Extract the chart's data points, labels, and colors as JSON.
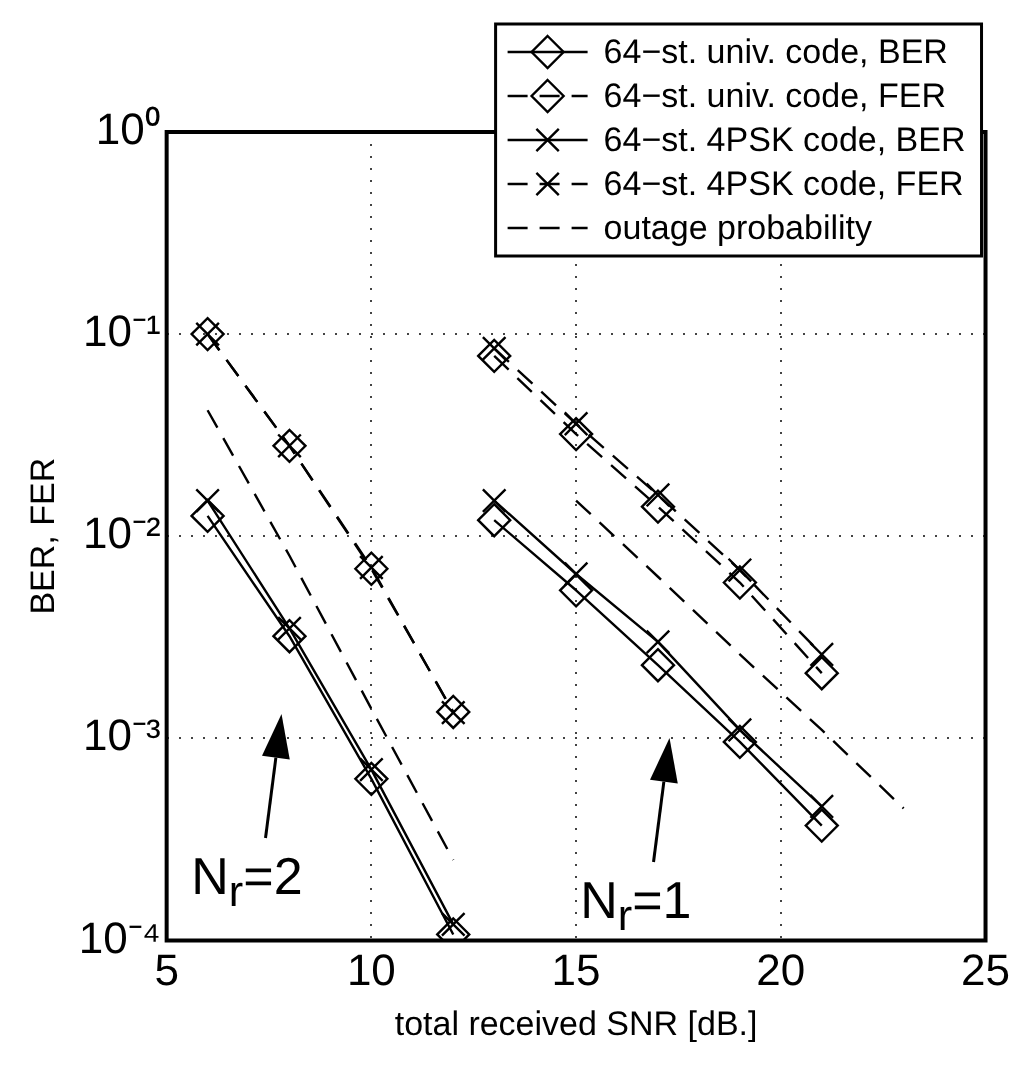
{
  "chart_data": {
    "type": "line",
    "xlabel": "total received SNR [dB.]",
    "ylabel": "BER, FER",
    "xlim": [
      5,
      25
    ],
    "xticks": [
      5,
      10,
      15,
      20,
      25
    ],
    "log": "y",
    "ylim": [
      0.0001,
      1
    ],
    "yticks": [
      {
        "value": 0.0001,
        "label": "10⁻⁴"
      },
      {
        "value": 0.001,
        "label": "10⁻³"
      },
      {
        "value": 0.01,
        "label": "10⁻²"
      },
      {
        "value": 0.1,
        "label": "10⁻¹"
      },
      {
        "value": 1,
        "label": "10⁰"
      }
    ],
    "grid": true,
    "legend": "top right",
    "series": [
      {
        "name": "64−st. univ. code, BER",
        "color": "#000000",
        "marker": "diamond",
        "line_style": "solid",
        "x": [
          6,
          8,
          10,
          12
        ],
        "values": [
          0.0126,
          0.0032,
          0.00063,
          0.000107
        ]
      },
      {
        "name": "64−st. univ. code, FER",
        "color": "#000000",
        "marker": "diamond",
        "line_style": "dashed",
        "x": [
          6,
          8,
          10,
          12
        ],
        "values": [
          0.1,
          0.028,
          0.0069,
          0.00135
        ]
      },
      {
        "name": "64−st. 4PSK code, BER",
        "color": "#000000",
        "marker": "cross",
        "line_style": "solid",
        "x": [
          6,
          8,
          10,
          12
        ],
        "values": [
          0.015,
          0.0035,
          0.0007,
          0.00012
        ]
      },
      {
        "name": "64−st. 4PSK code, FER",
        "color": "#000000",
        "marker": "cross",
        "line_style": "dashed",
        "x": [
          6,
          8,
          10,
          12
        ],
        "values": [
          0.1,
          0.028,
          0.007,
          0.00134
        ]
      },
      {
        "name": "outage probability",
        "color": "#000000",
        "marker": "none",
        "line_style": "dashed",
        "x": [
          6,
          8,
          10,
          12
        ],
        "values": [
          0.042,
          0.008,
          0.0014,
          0.00025
        ]
      },
      {
        "color": "#000000",
        "marker": "diamond",
        "line_style": "solid",
        "x": [
          13,
          15,
          17,
          19,
          21
        ],
        "values": [
          0.012,
          0.0054,
          0.0023,
          0.00096,
          0.00037
        ]
      },
      {
        "color": "#000000",
        "marker": "diamond",
        "line_style": "dashed",
        "x": [
          13,
          15,
          17,
          19,
          21
        ],
        "values": [
          0.078,
          0.032,
          0.014,
          0.0059,
          0.0021
        ]
      },
      {
        "color": "#000000",
        "marker": "cross",
        "line_style": "solid",
        "x": [
          13,
          15,
          17,
          19,
          21
        ],
        "values": [
          0.015,
          0.0065,
          0.003,
          0.0011,
          0.00046
        ]
      },
      {
        "color": "#000000",
        "marker": "cross",
        "line_style": "dashed",
        "x": [
          13,
          15,
          17,
          19,
          21
        ],
        "values": [
          0.085,
          0.036,
          0.016,
          0.0068,
          0.0026
        ]
      },
      {
        "color": "#000000",
        "marker": "none",
        "line_style": "dashed",
        "x": [
          15,
          17,
          19,
          21,
          23
        ],
        "values": [
          0.015,
          0.0063,
          0.0026,
          0.0011,
          0.00045
        ]
      }
    ],
    "annotations": [
      "N$_{r}$=2",
      "N$_{r}$=1"
    ]
  }
}
